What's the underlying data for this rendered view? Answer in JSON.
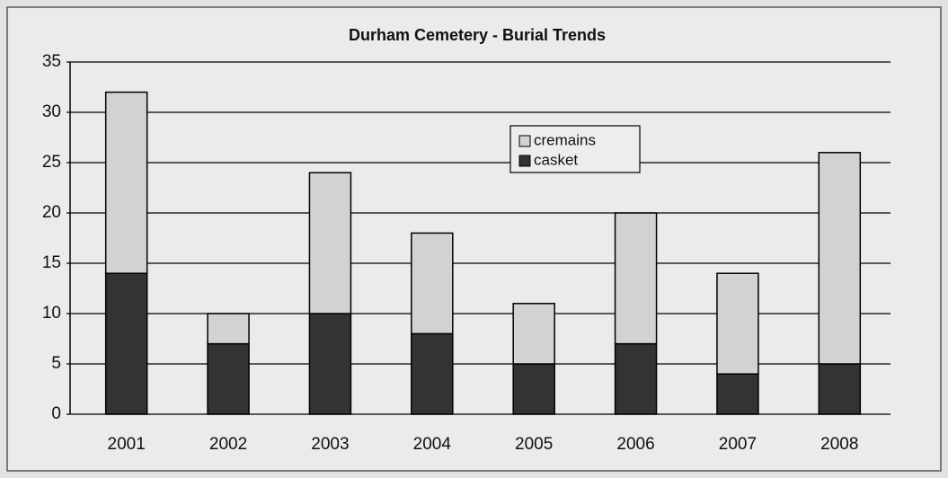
{
  "chart_data": {
    "type": "stacked_bar",
    "title": "Durham Cemetery - Burial Trends",
    "categories": [
      "2001",
      "2002",
      "2003",
      "2004",
      "2005",
      "2006",
      "2007",
      "2008"
    ],
    "series": [
      {
        "name": "casket",
        "color": "#333333",
        "values": [
          14,
          7,
          10,
          8,
          5,
          7,
          4,
          5
        ]
      },
      {
        "name": "cremains",
        "color": "#d2d2d2",
        "values": [
          18,
          3,
          14,
          10,
          6,
          13,
          10,
          21
        ]
      }
    ],
    "ylim": [
      0,
      35
    ],
    "yticks": [
      0,
      5,
      10,
      15,
      20,
      25,
      30,
      35
    ],
    "grid": true,
    "legend": "top-center"
  }
}
